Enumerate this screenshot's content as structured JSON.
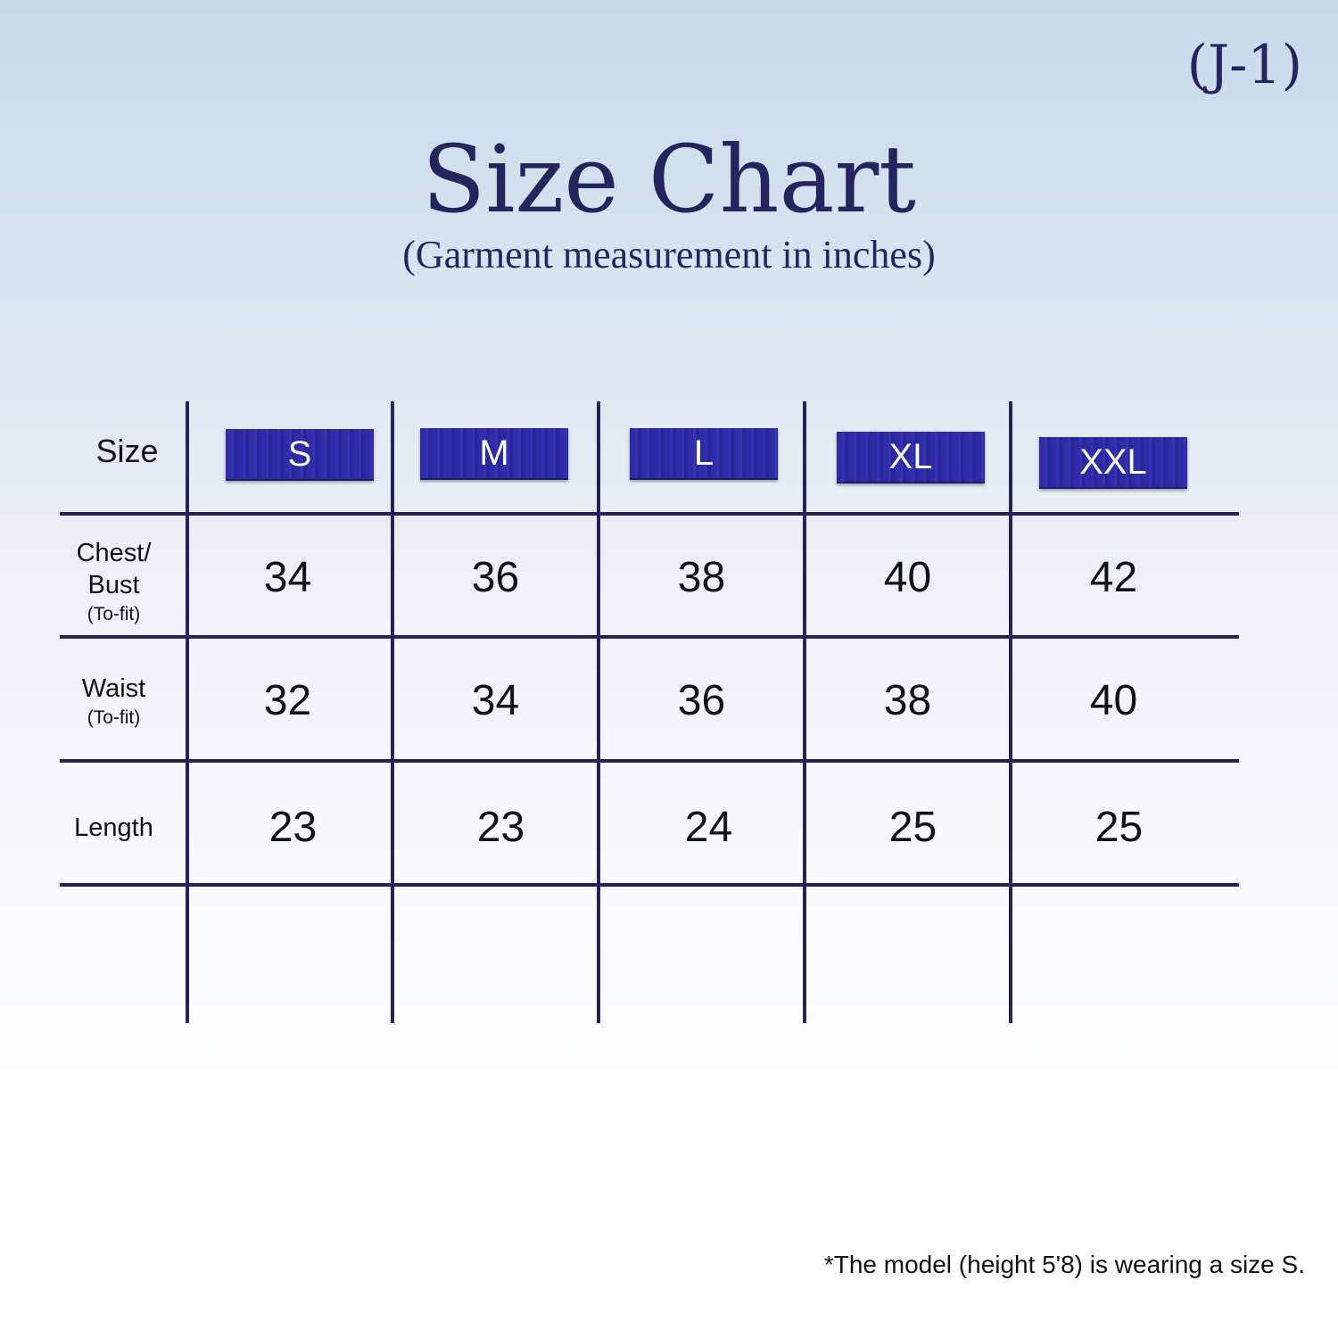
{
  "code": "(J-1)",
  "title": "Size Chart",
  "subtitle": "(Garment measurement in inches)",
  "colors": {
    "lines": "#23235a",
    "badge": "#2f2ba6",
    "title": "#25255e"
  },
  "table": {
    "header_label": "Size",
    "sizes": [
      "S",
      "M",
      "L",
      "XL",
      "XXL"
    ],
    "rows": [
      {
        "label": "Chest/",
        "label2": "Bust",
        "sub": "(To-fit)",
        "values": [
          "34",
          "36",
          "38",
          "40",
          "42"
        ]
      },
      {
        "label": "Waist",
        "sub": "(To-fit)",
        "values": [
          "32",
          "34",
          "36",
          "38",
          "40"
        ]
      },
      {
        "label": "Length",
        "values": [
          "23",
          "23",
          "24",
          "25",
          "25"
        ]
      }
    ]
  },
  "note": "*The model (height 5'8) is wearing a size S."
}
